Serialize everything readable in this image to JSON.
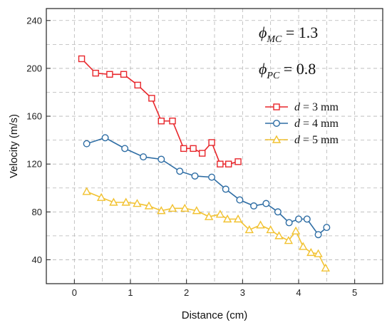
{
  "chart_data": {
    "type": "line",
    "xlabel": "Distance (cm)",
    "ylabel": "Velocity (m/s)",
    "xlim": [
      -0.5,
      5.5
    ],
    "ylim": [
      20,
      250
    ],
    "xticks": [
      0,
      1,
      2,
      3,
      4,
      5
    ],
    "yticks": [
      40,
      80,
      120,
      160,
      200,
      240
    ],
    "grid": true,
    "legend_position": "right-middle",
    "annotations": [
      {
        "symbol": "ϕ",
        "sub": "MC",
        "text": " = 1.3"
      },
      {
        "symbol": "ϕ",
        "sub": "PC",
        "text": " = 0.8"
      }
    ],
    "series": [
      {
        "name_var": "d",
        "name_rest": " = 3 mm",
        "color": "#e8262b",
        "marker": "square",
        "x": [
          0.13,
          0.38,
          0.63,
          0.88,
          1.13,
          1.38,
          1.55,
          1.75,
          1.95,
          2.12,
          2.28,
          2.45,
          2.6,
          2.75,
          2.92
        ],
        "y": [
          208,
          196,
          195,
          195,
          186,
          175,
          156,
          156,
          133,
          133,
          129,
          138,
          120,
          120,
          122
        ]
      },
      {
        "name_var": "d",
        "name_rest": " = 4 mm",
        "color": "#2e6da4",
        "marker": "circle",
        "x": [
          0.22,
          0.55,
          0.9,
          1.23,
          1.55,
          1.88,
          2.15,
          2.45,
          2.7,
          2.95,
          3.2,
          3.42,
          3.63,
          3.83,
          4.0,
          4.15,
          4.35,
          4.5
        ],
        "y": [
          137,
          142,
          133,
          126,
          124,
          114,
          110,
          109,
          99,
          90,
          85,
          87,
          80,
          71,
          74,
          74,
          61,
          67
        ]
      },
      {
        "name_var": "d",
        "name_rest": " = 5 mm",
        "color": "#f2c231",
        "marker": "triangle",
        "x": [
          0.22,
          0.48,
          0.7,
          0.92,
          1.12,
          1.33,
          1.55,
          1.75,
          1.97,
          2.18,
          2.4,
          2.6,
          2.73,
          2.92,
          3.12,
          3.32,
          3.5,
          3.65,
          3.82,
          3.95,
          4.08,
          4.22,
          4.35,
          4.48
        ],
        "y": [
          97,
          92,
          88,
          88,
          87,
          85,
          81,
          83,
          83,
          81,
          76,
          78,
          74,
          74,
          65,
          69,
          65,
          60,
          56,
          64,
          51,
          46,
          45,
          33
        ]
      }
    ]
  }
}
